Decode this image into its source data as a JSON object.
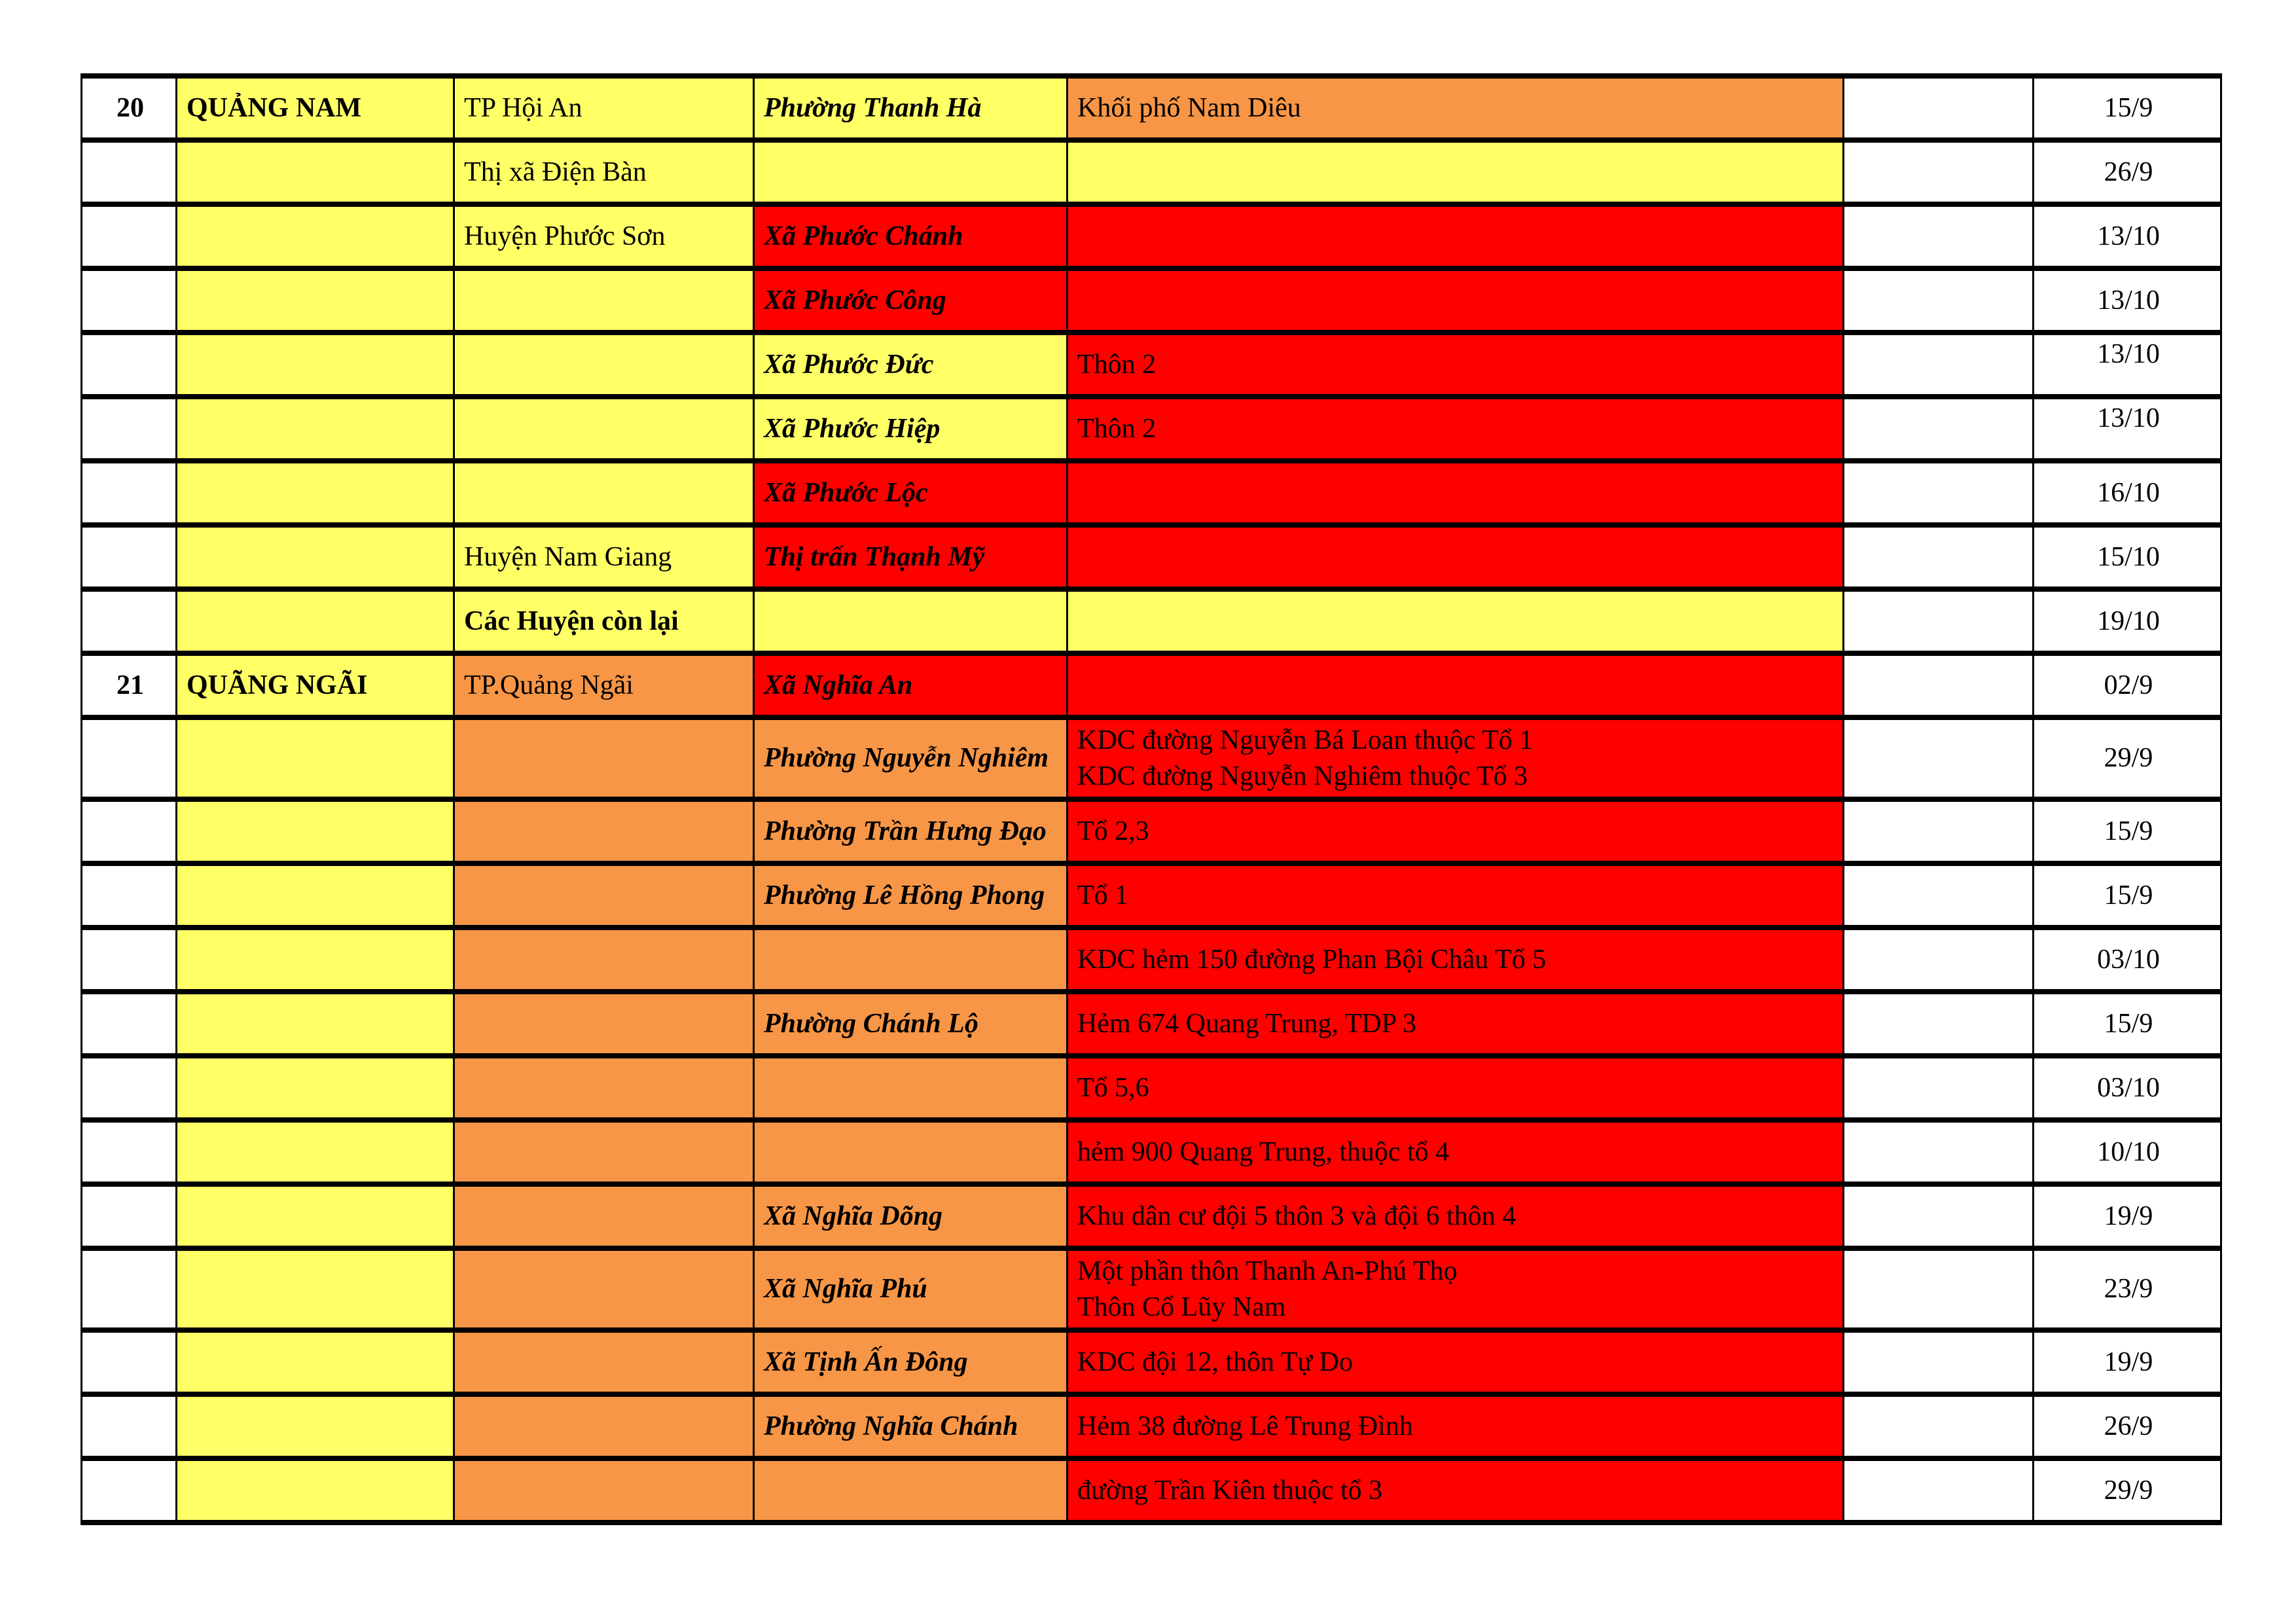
{
  "colors": {
    "w": "#FFFFFF",
    "y": "#FFFF66",
    "o": "#F79646",
    "r": "#FF0000",
    "border": "#000000"
  },
  "table": {
    "columns": [
      "no",
      "province",
      "district",
      "ward",
      "detail",
      "gap",
      "date"
    ],
    "rows": [
      {
        "no": "20",
        "province": "QUẢNG NAM",
        "district": "TP Hội An",
        "ward": "Phường Thanh Hà",
        "detail": "Khối phố Nam Diêu",
        "date": "15/9",
        "cell_colors": [
          "w",
          "y",
          "y",
          "y",
          "o",
          "w",
          "w"
        ]
      },
      {
        "no": "",
        "province": "",
        "district": "Thị xã Điện Bàn",
        "ward": "",
        "detail": "",
        "date": "26/9",
        "cell_colors": [
          "w",
          "y",
          "y",
          "y",
          "y",
          "w",
          "w"
        ]
      },
      {
        "no": "",
        "province": "",
        "district": "Huyện Phước Sơn",
        "ward": "Xã Phước Chánh",
        "detail": "",
        "date": "13/10",
        "cell_colors": [
          "w",
          "y",
          "y",
          "r",
          "r",
          "w",
          "w"
        ]
      },
      {
        "no": "",
        "province": "",
        "district": "",
        "ward": "Xã Phước Công",
        "detail": "",
        "date": "13/10",
        "cell_colors": [
          "w",
          "y",
          "y",
          "r",
          "r",
          "w",
          "w"
        ]
      },
      {
        "no": "",
        "province": "",
        "district": "",
        "ward": "Xã Phước Đức",
        "detail": "Thôn 2",
        "date": "13/10",
        "date_top": true,
        "cell_colors": [
          "w",
          "y",
          "y",
          "y",
          "r",
          "w",
          "w"
        ]
      },
      {
        "no": "",
        "province": "",
        "district": "",
        "ward": "Xã Phước Hiệp",
        "detail": "Thôn 2",
        "date": "13/10",
        "date_top": true,
        "cell_colors": [
          "w",
          "y",
          "y",
          "y",
          "r",
          "w",
          "w"
        ]
      },
      {
        "no": "",
        "province": "",
        "district": "",
        "ward": "Xã Phước Lộc",
        "detail": "",
        "date": "16/10",
        "cell_colors": [
          "w",
          "y",
          "y",
          "r",
          "r",
          "w",
          "w"
        ]
      },
      {
        "no": "",
        "province": "",
        "district": "Huyện Nam Giang",
        "ward": "Thị trấn  Thạnh Mỹ",
        "detail": "",
        "date": "15/10",
        "cell_colors": [
          "w",
          "y",
          "y",
          "r",
          "r",
          "w",
          "w"
        ]
      },
      {
        "no": "",
        "province": "",
        "district": "Các Huyện còn lại",
        "district_bold": true,
        "ward": "",
        "detail": "",
        "date": "19/10",
        "cell_colors": [
          "w",
          "y",
          "y",
          "y",
          "y",
          "w",
          "w"
        ]
      },
      {
        "no": "21",
        "province": "QUÃNG NGÃI",
        "district": "TP.Quảng Ngãi",
        "ward": "Xã Nghĩa An",
        "detail": "",
        "date": "02/9",
        "cell_colors": [
          "w",
          "y",
          "o",
          "r",
          "r",
          "w",
          "w"
        ]
      },
      {
        "no": "",
        "province": "",
        "district": "",
        "ward": "Phường Nguyễn Nghiêm",
        "detail": "KDC đường Nguyễn Bá Loan thuộc Tổ 1\nKDC đường Nguyễn Nghiêm thuộc Tổ 3",
        "date": "29/9",
        "cell_colors": [
          "w",
          "y",
          "o",
          "o",
          "r",
          "w",
          "w"
        ]
      },
      {
        "no": "",
        "province": "",
        "district": "",
        "ward": "Phường Trần Hưng Đạo",
        "detail": "Tổ 2,3",
        "date": "15/9",
        "cell_colors": [
          "w",
          "y",
          "o",
          "o",
          "r",
          "w",
          "w"
        ]
      },
      {
        "no": "",
        "province": "",
        "district": "",
        "ward": "Phường Lê Hồng Phong",
        "detail": "Tổ 1",
        "date": "15/9",
        "cell_colors": [
          "w",
          "y",
          "o",
          "o",
          "r",
          "w",
          "w"
        ]
      },
      {
        "no": "",
        "province": "",
        "district": "",
        "ward": "",
        "detail": "KDC hẻm 150 đường Phan Bội Châu Tổ 5",
        "date": "03/10",
        "cell_colors": [
          "w",
          "y",
          "o",
          "o",
          "r",
          "w",
          "w"
        ]
      },
      {
        "no": "",
        "province": "",
        "district": "",
        "ward": "Phường Chánh Lộ",
        "detail": "Hẻm 674 Quang Trung, TDP 3",
        "date": "15/9",
        "cell_colors": [
          "w",
          "y",
          "o",
          "o",
          "r",
          "w",
          "w"
        ]
      },
      {
        "no": "",
        "province": "",
        "district": "",
        "ward": "",
        "detail": "Tổ 5,6",
        "date": "03/10",
        "cell_colors": [
          "w",
          "y",
          "o",
          "o",
          "r",
          "w",
          "w"
        ]
      },
      {
        "no": "",
        "province": "",
        "district": "",
        "ward": "",
        "detail": "hẻm 900 Quang Trung, thuộc tổ 4",
        "date": "10/10",
        "cell_colors": [
          "w",
          "y",
          "o",
          "o",
          "r",
          "w",
          "w"
        ]
      },
      {
        "no": "",
        "province": "",
        "district": "",
        "ward": "Xã Nghĩa Dõng",
        "detail": "Khu dân cư đội 5 thôn 3 và đội 6 thôn 4",
        "date": "19/9",
        "cell_colors": [
          "w",
          "y",
          "o",
          "o",
          "r",
          "w",
          "w"
        ]
      },
      {
        "no": "",
        "province": "",
        "district": "",
        "ward": "Xã Nghĩa Phú",
        "detail": "Một phần thôn Thanh An-Phú Thọ\nThôn Cổ Lũy Nam",
        "date": "23/9",
        "cell_colors": [
          "w",
          "y",
          "o",
          "o",
          "r",
          "w",
          "w"
        ]
      },
      {
        "no": "",
        "province": "",
        "district": "",
        "ward": "Xã Tịnh Ấn Đông",
        "detail": "KDC đội 12, thôn Tự Do",
        "date": "19/9",
        "cell_colors": [
          "w",
          "y",
          "o",
          "o",
          "r",
          "w",
          "w"
        ]
      },
      {
        "no": "",
        "province": "",
        "district": "",
        "ward": "Phường Nghĩa Chánh",
        "detail": "Hẻm 38 đường Lê Trung Đình",
        "date": "26/9",
        "cell_colors": [
          "w",
          "y",
          "o",
          "o",
          "r",
          "w",
          "w"
        ]
      },
      {
        "no": "",
        "province": "",
        "district": "",
        "ward": "",
        "detail": "đường Trần Kiên thuộc tổ 3",
        "date": "29/9",
        "cell_colors": [
          "w",
          "y",
          "o",
          "o",
          "r",
          "w",
          "w"
        ]
      }
    ]
  }
}
